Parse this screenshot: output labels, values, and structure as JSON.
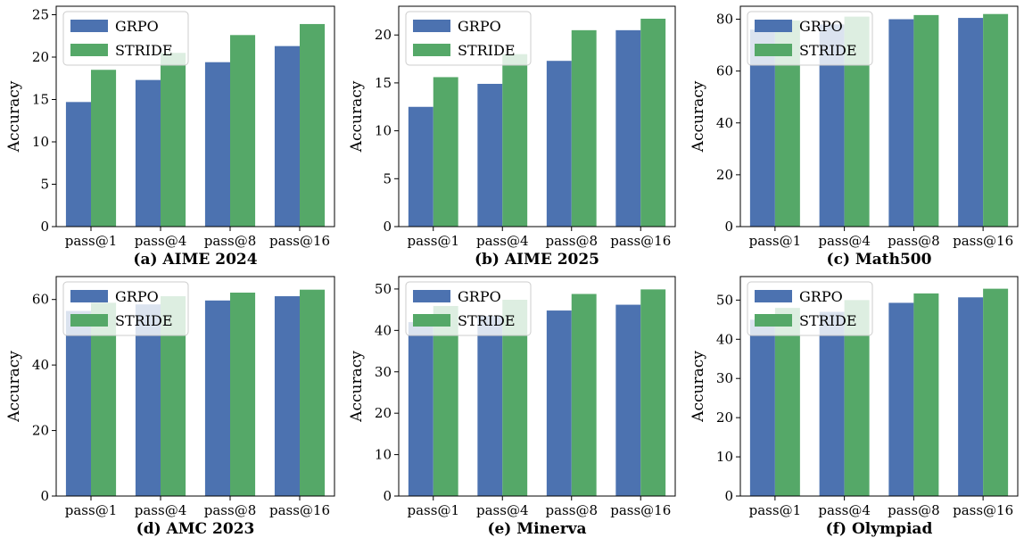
{
  "colors": {
    "GRPO": "#4c72b0",
    "STRIDE": "#55a868"
  },
  "chart_data": [
    {
      "type": "bar",
      "title": "(a) AIME 2024",
      "ylabel": "Accuracy",
      "categories": [
        "pass@1",
        "pass@4",
        "pass@8",
        "pass@16"
      ],
      "ylim": [
        0,
        26
      ],
      "yticks": [
        0,
        5,
        10,
        15,
        20,
        25
      ],
      "legend": "top-left",
      "series": [
        {
          "name": "GRPO",
          "values": [
            14.7,
            17.3,
            19.4,
            21.3
          ]
        },
        {
          "name": "STRIDE",
          "values": [
            18.5,
            20.5,
            22.6,
            23.9
          ]
        }
      ]
    },
    {
      "type": "bar",
      "title": "(b) AIME 2025",
      "ylabel": "Accuracy",
      "categories": [
        "pass@1",
        "pass@4",
        "pass@8",
        "pass@16"
      ],
      "ylim": [
        0,
        23
      ],
      "yticks": [
        0,
        5,
        10,
        15,
        20
      ],
      "legend": "top-left",
      "series": [
        {
          "name": "GRPO",
          "values": [
            12.5,
            14.9,
            17.3,
            20.5
          ]
        },
        {
          "name": "STRIDE",
          "values": [
            15.6,
            18.0,
            20.5,
            21.7
          ]
        }
      ]
    },
    {
      "type": "bar",
      "title": "(c) Math500",
      "ylabel": "Accuracy",
      "categories": [
        "pass@1",
        "pass@4",
        "pass@8",
        "pass@16"
      ],
      "ylim": [
        0,
        85
      ],
      "yticks": [
        0,
        20,
        40,
        60,
        80
      ],
      "legend": "top-left",
      "series": [
        {
          "name": "GRPO",
          "values": [
            76.0,
            78.0,
            80.0,
            80.5
          ]
        },
        {
          "name": "STRIDE",
          "values": [
            79.5,
            81.0,
            81.6,
            82.0
          ]
        }
      ]
    },
    {
      "type": "bar",
      "title": "(d) AMC 2023",
      "ylabel": "Accuracy",
      "categories": [
        "pass@1",
        "pass@4",
        "pass@8",
        "pass@16"
      ],
      "ylim": [
        0,
        67
      ],
      "yticks": [
        0,
        20,
        40,
        60
      ],
      "legend": "top-left",
      "series": [
        {
          "name": "GRPO",
          "values": [
            56.5,
            58.5,
            59.7,
            61.0
          ]
        },
        {
          "name": "STRIDE",
          "values": [
            59.0,
            61.0,
            62.1,
            63.0
          ]
        }
      ]
    },
    {
      "type": "bar",
      "title": "(e) Minerva",
      "ylabel": "Accuracy",
      "categories": [
        "pass@1",
        "pass@4",
        "pass@8",
        "pass@16"
      ],
      "ylim": [
        0,
        53
      ],
      "yticks": [
        0,
        10,
        20,
        30,
        40,
        50
      ],
      "legend": "top-left",
      "series": [
        {
          "name": "GRPO",
          "values": [
            42.0,
            43.5,
            44.8,
            46.2
          ]
        },
        {
          "name": "STRIDE",
          "values": [
            45.9,
            47.4,
            48.8,
            49.9
          ]
        }
      ]
    },
    {
      "type": "bar",
      "title": "(f) Olympiad",
      "ylabel": "Accuracy",
      "categories": [
        "pass@1",
        "pass@4",
        "pass@8",
        "pass@16"
      ],
      "ylim": [
        0,
        56
      ],
      "yticks": [
        0,
        10,
        20,
        30,
        40,
        50
      ],
      "legend": "top-left",
      "series": [
        {
          "name": "GRPO",
          "values": [
            45.0,
            47.0,
            49.3,
            50.7
          ]
        },
        {
          "name": "STRIDE",
          "values": [
            48.0,
            50.0,
            51.7,
            52.9
          ]
        }
      ]
    }
  ]
}
